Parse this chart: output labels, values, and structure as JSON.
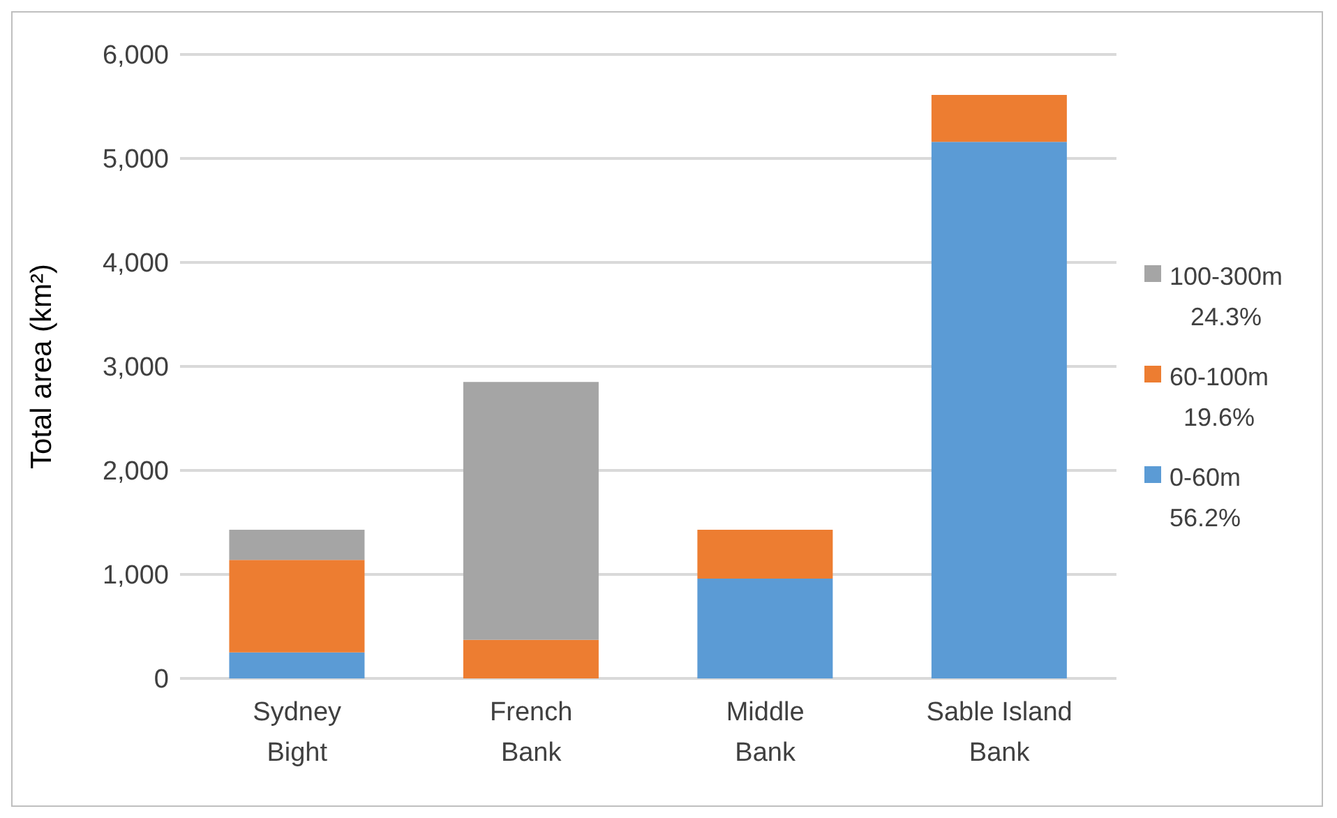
{
  "chart_data": {
    "type": "bar",
    "ylabel": "Total area (km²)",
    "categories": [
      "Sydney Bight",
      "French Bank",
      "Middle Bank",
      "Sable Island Bank"
    ],
    "stacked": true,
    "series": [
      {
        "name": "0-60m 56.2%",
        "color": "#5b9bd5",
        "values": [
          250,
          null,
          960,
          5160
        ]
      },
      {
        "name": "60-100m 19.6%",
        "color": "#ed7d31",
        "values": [
          890,
          370,
          470,
          450
        ]
      },
      {
        "name": "100-300m 24.3%",
        "color": "#a5a5a5",
        "values": [
          290,
          2480,
          null,
          null
        ]
      }
    ],
    "ylim": [
      0,
      6000
    ],
    "yticks": [
      0,
      {
        "value": 1000,
        "label": "1,000"
      },
      {
        "value": 2000,
        "label": "2,000"
      },
      {
        "value": 3000,
        "label": "3,000"
      },
      {
        "value": 4000,
        "label": "4,000"
      },
      {
        "value": 5000,
        "label": "5,000"
      },
      {
        "value": 6000,
        "label": "6,000"
      }
    ],
    "grid": "y",
    "legend": "right"
  }
}
